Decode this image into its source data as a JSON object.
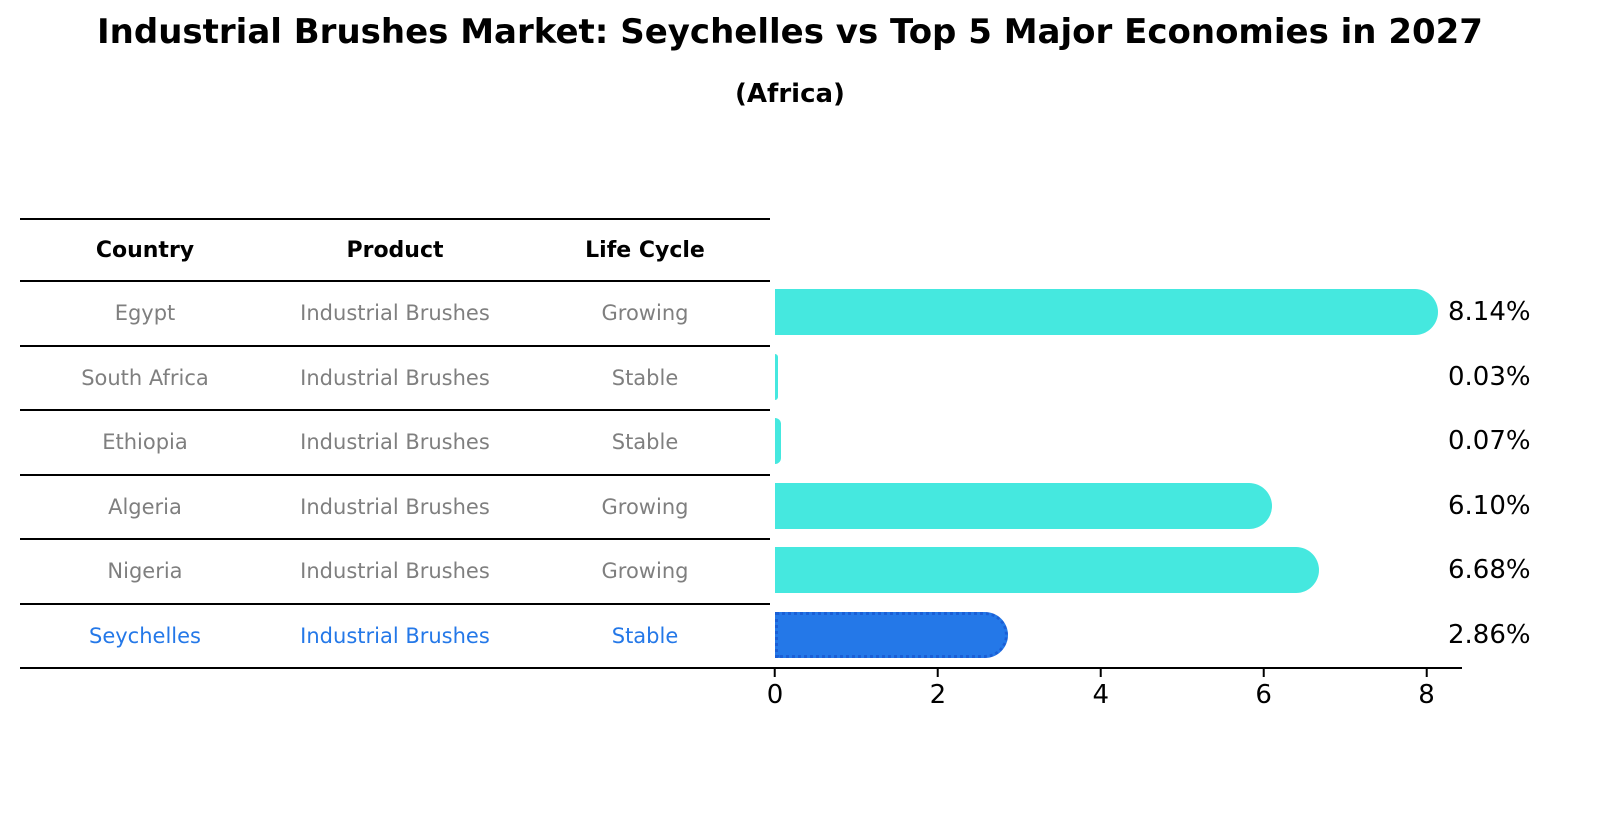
{
  "title": "Industrial Brushes Market: Seychelles vs Top 5 Major Economies in 2027",
  "subtitle": "(Africa)",
  "table": {
    "headers": [
      "Country",
      "Product",
      "Life Cycle"
    ],
    "rows": [
      {
        "country": "Egypt",
        "product": "Industrial Brushes",
        "life_cycle": "Growing",
        "highlight": false
      },
      {
        "country": "South Africa",
        "product": "Industrial Brushes",
        "life_cycle": "Stable",
        "highlight": false
      },
      {
        "country": "Ethiopia",
        "product": "Industrial Brushes",
        "life_cycle": "Stable",
        "highlight": false
      },
      {
        "country": "Algeria",
        "product": "Industrial Brushes",
        "life_cycle": "Growing",
        "highlight": false
      },
      {
        "country": "Nigeria",
        "product": "Industrial Brushes",
        "life_cycle": "Growing",
        "highlight": false
      },
      {
        "country": "Seychelles",
        "product": "Industrial Brushes",
        "life_cycle": "Stable",
        "highlight": true
      }
    ]
  },
  "chart_data": {
    "type": "bar",
    "orientation": "horizontal",
    "title": "Industrial Brushes Market: Seychelles vs Top 5 Major Economies in 2027",
    "subtitle": "(Africa)",
    "categories": [
      "Egypt",
      "South Africa",
      "Ethiopia",
      "Algeria",
      "Nigeria",
      "Seychelles"
    ],
    "values": [
      8.14,
      0.03,
      0.07,
      6.1,
      6.68,
      2.86
    ],
    "value_labels": [
      "8.14%",
      "0.03%",
      "0.07%",
      "6.10%",
      "6.68%",
      "2.86%"
    ],
    "xlabel": "",
    "ylabel": "",
    "xlim": [
      0,
      8.35
    ],
    "xticks": [
      0,
      2,
      4,
      6,
      8
    ],
    "grid": false,
    "legend": "none",
    "bar_color": "#45e8df",
    "highlight_index": 5,
    "highlight_color": "#2478e8",
    "highlight_text_color": "#2478e8"
  }
}
